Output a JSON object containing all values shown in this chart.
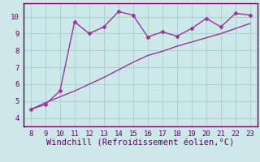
{
  "xlabel": "Windchill (Refroidissement éolien,°C)",
  "x_values": [
    8,
    9,
    10,
    11,
    12,
    13,
    14,
    15,
    16,
    17,
    18,
    19,
    20,
    21,
    22,
    23
  ],
  "y_line1": [
    4.5,
    4.8,
    5.6,
    9.7,
    9.0,
    9.4,
    10.3,
    10.1,
    8.8,
    9.1,
    8.85,
    9.3,
    9.9,
    9.4,
    10.2,
    10.1
  ],
  "y_line2": [
    4.5,
    4.9,
    5.25,
    5.6,
    6.0,
    6.4,
    6.85,
    7.3,
    7.7,
    7.95,
    8.25,
    8.5,
    8.75,
    9.0,
    9.3,
    9.6
  ],
  "line_color": "#993399",
  "bg_color": "#cce8e8",
  "grid_color": "#aacccc",
  "axis_label_color": "#660066",
  "tick_color": "#660066",
  "border_color": "#660066",
  "ylim": [
    3.5,
    10.8
  ],
  "xlim": [
    7.5,
    23.5
  ],
  "yticks": [
    4,
    5,
    6,
    7,
    8,
    9,
    10
  ],
  "xticks": [
    8,
    9,
    10,
    11,
    12,
    13,
    14,
    15,
    16,
    17,
    18,
    19,
    20,
    21,
    22,
    23
  ],
  "marker": "D",
  "markersize": 2.5,
  "linewidth": 1.0,
  "xlabel_fontsize": 7.5,
  "tick_fontsize": 6.5
}
